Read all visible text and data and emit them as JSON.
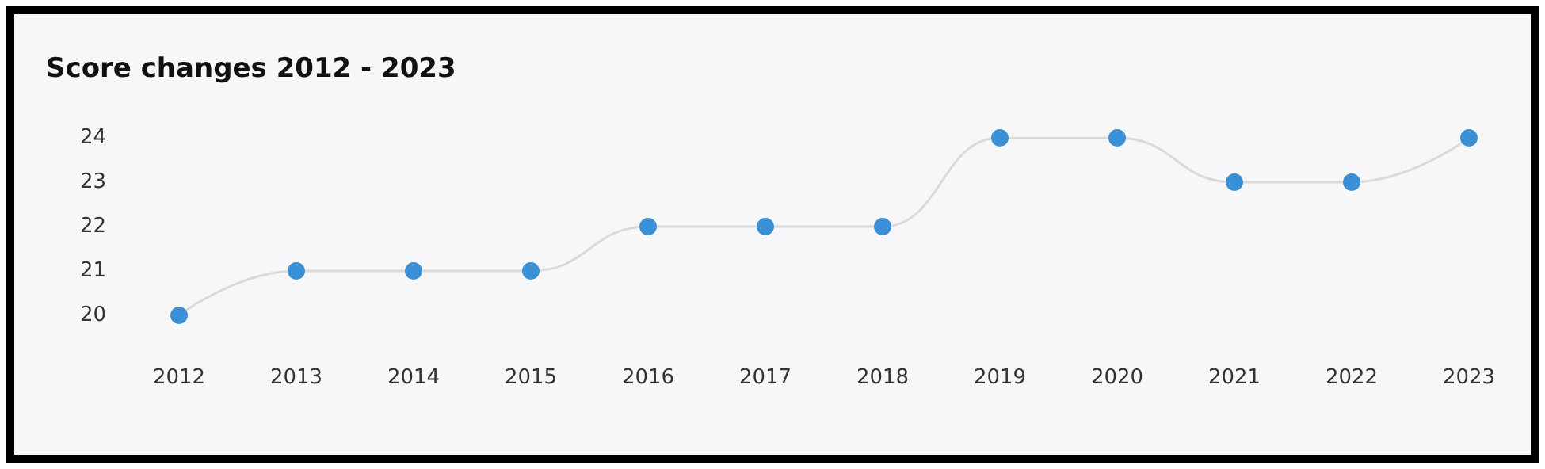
{
  "chart_data": {
    "type": "line",
    "title": "Score changes 2012 - 2023",
    "categories": [
      "2012",
      "2013",
      "2014",
      "2015",
      "2016",
      "2017",
      "2018",
      "2019",
      "2020",
      "2021",
      "2022",
      "2023"
    ],
    "series": [
      {
        "color": "#3a8fd6",
        "values": [
          20,
          21,
          21,
          21,
          22,
          22,
          22,
          24,
          24,
          23,
          23,
          24
        ]
      }
    ],
    "ylim": [
      20,
      24
    ],
    "yticks": [
      20,
      21,
      22,
      23,
      24
    ],
    "grid": false,
    "marker": "circle",
    "line_style": "solid"
  }
}
